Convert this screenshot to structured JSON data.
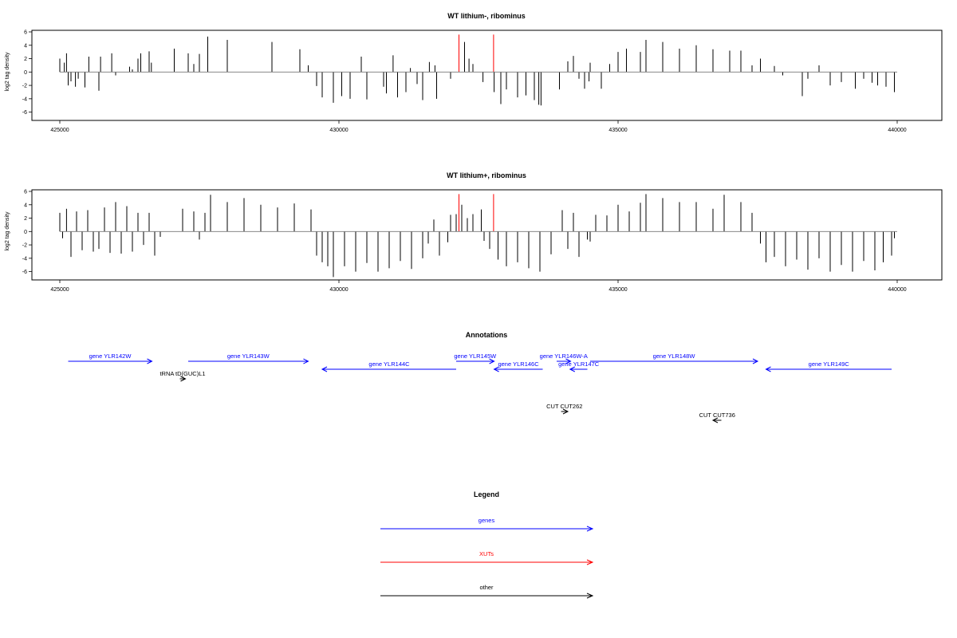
{
  "colors": {
    "gene": "#0000ff",
    "xut": "#ff0000",
    "other": "#000000"
  },
  "chart_data": [
    {
      "type": "bar",
      "title": "WT lithium-, ribominus",
      "ylabel": "log2 tag density",
      "xlim": [
        424500,
        440800
      ],
      "ylim": [
        -7,
        6
      ],
      "x_ticks": [
        425000,
        430000,
        435000,
        440000
      ],
      "x_tick_labels": [
        "425000",
        "430000",
        "435000",
        "440000"
      ],
      "y_ticks": [
        6,
        4,
        2,
        0,
        -2,
        -4,
        -6
      ],
      "y_tick_labels": [
        "6",
        "4",
        "2",
        "0",
        "-2",
        "-4",
        "-6"
      ],
      "zero_line_range": [
        425000,
        440000
      ],
      "series": [
        {
          "color_key": "other",
          "values": [
            [
              425000,
              2.0
            ],
            [
              425080,
              1.4
            ],
            [
              425120,
              2.8
            ],
            [
              425150,
              -2.0
            ],
            [
              425200,
              -1.4
            ],
            [
              425280,
              -2.2
            ],
            [
              425330,
              -1.0
            ],
            [
              425450,
              -2.3
            ],
            [
              425520,
              2.3
            ],
            [
              425700,
              -2.8
            ],
            [
              425730,
              2.3
            ],
            [
              425930,
              2.8
            ],
            [
              426000,
              -0.5
            ],
            [
              426250,
              0.8
            ],
            [
              426300,
              0.4
            ],
            [
              426400,
              2.0
            ],
            [
              426450,
              2.8
            ],
            [
              426600,
              3.1
            ],
            [
              426640,
              1.4
            ],
            [
              427050,
              3.5
            ],
            [
              427300,
              2.8
            ],
            [
              427400,
              1.2
            ],
            [
              427500,
              2.7
            ],
            [
              427650,
              5.3
            ],
            [
              428000,
              4.8
            ],
            [
              428800,
              4.5
            ],
            [
              429300,
              3.4
            ],
            [
              429450,
              1.0
            ],
            [
              429600,
              -2.1
            ],
            [
              429700,
              -3.8
            ],
            [
              429900,
              -4.6
            ],
            [
              430050,
              -3.6
            ],
            [
              430200,
              -4.0
            ],
            [
              430400,
              2.3
            ],
            [
              430500,
              -4.1
            ],
            [
              430800,
              -2.2
            ],
            [
              430850,
              -3.2
            ],
            [
              430970,
              2.5
            ],
            [
              431050,
              -3.8
            ],
            [
              431200,
              -3.0
            ],
            [
              431280,
              0.6
            ],
            [
              431400,
              -1.8
            ],
            [
              431500,
              -4.2
            ],
            [
              431620,
              1.5
            ],
            [
              431720,
              1.0
            ],
            [
              431750,
              -4.0
            ],
            [
              432000,
              -1.0
            ],
            [
              432250,
              4.5
            ],
            [
              432330,
              2.0
            ],
            [
              432400,
              1.2
            ],
            [
              432580,
              -1.5
            ],
            [
              432780,
              -3.0
            ],
            [
              432900,
              -4.8
            ],
            [
              433000,
              -2.6
            ],
            [
              433200,
              -3.8
            ],
            [
              433350,
              -3.5
            ],
            [
              433500,
              -4.2
            ],
            [
              433580,
              -4.9
            ],
            [
              433620,
              -5.0
            ],
            [
              433950,
              -2.6
            ],
            [
              434100,
              1.6
            ],
            [
              434200,
              2.4
            ],
            [
              434300,
              -1.0
            ],
            [
              434400,
              -2.5
            ],
            [
              434480,
              -1.4
            ],
            [
              434500,
              1.4
            ],
            [
              434700,
              -2.5
            ],
            [
              434850,
              1.2
            ],
            [
              435000,
              3.0
            ],
            [
              435150,
              3.5
            ],
            [
              435400,
              3.0
            ],
            [
              435500,
              4.8
            ],
            [
              435800,
              4.5
            ],
            [
              436100,
              3.5
            ],
            [
              436400,
              4.0
            ],
            [
              436700,
              3.4
            ],
            [
              437000,
              3.2
            ],
            [
              437200,
              3.2
            ],
            [
              437400,
              1.0
            ],
            [
              437550,
              2.0
            ],
            [
              437800,
              0.9
            ],
            [
              437950,
              -0.5
            ],
            [
              438300,
              -3.6
            ],
            [
              438400,
              -1.0
            ],
            [
              438600,
              1.0
            ],
            [
              438800,
              -2.0
            ],
            [
              439000,
              -1.5
            ],
            [
              439250,
              -2.5
            ],
            [
              439400,
              -1.0
            ],
            [
              439550,
              -1.6
            ],
            [
              439650,
              -2.0
            ],
            [
              439800,
              -2.2
            ],
            [
              439950,
              -3.0
            ]
          ]
        },
        {
          "color_key": "xut",
          "values": [
            [
              432150,
              5.6
            ],
            [
              432770,
              5.6
            ]
          ]
        }
      ]
    },
    {
      "type": "bar",
      "title": "WT lithium+, ribominus",
      "ylabel": "log2 tag density",
      "xlim": [
        424500,
        440800
      ],
      "ylim": [
        -7,
        6
      ],
      "x_ticks": [
        425000,
        430000,
        435000,
        440000
      ],
      "x_tick_labels": [
        "425000",
        "430000",
        "435000",
        "440000"
      ],
      "y_ticks": [
        6,
        4,
        2,
        0,
        -2,
        -4,
        -6
      ],
      "y_tick_labels": [
        "6",
        "4",
        "2",
        "0",
        "-2",
        "-4",
        "-6"
      ],
      "zero_line_range": [
        425000,
        440000
      ],
      "series": [
        {
          "color_key": "other",
          "values": [
            [
              425000,
              2.8
            ],
            [
              425050,
              -1.0
            ],
            [
              425120,
              3.4
            ],
            [
              425200,
              -3.8
            ],
            [
              425300,
              3.0
            ],
            [
              425400,
              -2.8
            ],
            [
              425500,
              3.2
            ],
            [
              425600,
              -3.0
            ],
            [
              425700,
              -2.6
            ],
            [
              425800,
              3.6
            ],
            [
              425900,
              -3.2
            ],
            [
              426000,
              4.4
            ],
            [
              426100,
              -3.3
            ],
            [
              426200,
              3.8
            ],
            [
              426300,
              -3.0
            ],
            [
              426400,
              2.8
            ],
            [
              426500,
              -2.0
            ],
            [
              426600,
              2.8
            ],
            [
              426700,
              -3.6
            ],
            [
              426800,
              -0.8
            ],
            [
              427200,
              3.4
            ],
            [
              427400,
              3.0
            ],
            [
              427500,
              -1.2
            ],
            [
              427600,
              2.8
            ],
            [
              427700,
              5.5
            ],
            [
              428000,
              4.4
            ],
            [
              428300,
              5.0
            ],
            [
              428600,
              4.0
            ],
            [
              428900,
              3.6
            ],
            [
              429200,
              4.2
            ],
            [
              429500,
              3.3
            ],
            [
              429600,
              -3.6
            ],
            [
              429700,
              -4.6
            ],
            [
              429800,
              -5.2
            ],
            [
              429900,
              -6.8
            ],
            [
              430100,
              -5.2
            ],
            [
              430300,
              -6.0
            ],
            [
              430500,
              -4.7
            ],
            [
              430700,
              -6.0
            ],
            [
              430900,
              -5.5
            ],
            [
              431100,
              -4.4
            ],
            [
              431300,
              -5.6
            ],
            [
              431500,
              -4.0
            ],
            [
              431600,
              -1.8
            ],
            [
              431700,
              1.8
            ],
            [
              431800,
              -3.6
            ],
            [
              431950,
              -1.6
            ],
            [
              432000,
              2.5
            ],
            [
              432100,
              2.6
            ],
            [
              432200,
              4.0
            ],
            [
              432300,
              2.0
            ],
            [
              432400,
              2.6
            ],
            [
              432550,
              3.3
            ],
            [
              432600,
              -1.4
            ],
            [
              432700,
              -2.6
            ],
            [
              432850,
              -4.2
            ],
            [
              433000,
              -5.2
            ],
            [
              433200,
              -4.6
            ],
            [
              433400,
              -5.5
            ],
            [
              433600,
              -6.0
            ],
            [
              433800,
              -3.4
            ],
            [
              434000,
              3.2
            ],
            [
              434100,
              -2.6
            ],
            [
              434200,
              2.8
            ],
            [
              434300,
              -3.8
            ],
            [
              434450,
              -1.2
            ],
            [
              434500,
              -1.5
            ],
            [
              434600,
              2.5
            ],
            [
              434800,
              2.4
            ],
            [
              435000,
              4.0
            ],
            [
              435200,
              3.0
            ],
            [
              435400,
              4.3
            ],
            [
              435500,
              5.6
            ],
            [
              435800,
              5.0
            ],
            [
              436100,
              4.4
            ],
            [
              436400,
              4.4
            ],
            [
              436700,
              3.4
            ],
            [
              436900,
              5.5
            ],
            [
              437200,
              4.4
            ],
            [
              437400,
              2.8
            ],
            [
              437550,
              -1.8
            ],
            [
              437650,
              -4.6
            ],
            [
              437800,
              -3.8
            ],
            [
              438000,
              -5.2
            ],
            [
              438200,
              -4.2
            ],
            [
              438400,
              -5.7
            ],
            [
              438600,
              -4.0
            ],
            [
              438800,
              -6.0
            ],
            [
              439000,
              -5.0
            ],
            [
              439200,
              -6.0
            ],
            [
              439400,
              -4.4
            ],
            [
              439600,
              -5.8
            ],
            [
              439750,
              -4.6
            ],
            [
              439900,
              -3.6
            ],
            [
              439950,
              -1.0
            ]
          ]
        },
        {
          "color_key": "xut",
          "values": [
            [
              432150,
              5.6
            ],
            [
              432770,
              5.6
            ]
          ]
        }
      ]
    }
  ],
  "annotations": {
    "title": "Annotations",
    "x_range": [
      424500,
      440800
    ],
    "features": [
      {
        "label": "gene YLR142W",
        "start": 425150,
        "end": 426650,
        "strand": "+",
        "row": 0,
        "type": "gene"
      },
      {
        "label": "gene YLR143W",
        "start": 427300,
        "end": 429450,
        "strand": "+",
        "row": 0,
        "type": "gene"
      },
      {
        "label": "gene YLR144C",
        "start": 429700,
        "end": 432100,
        "strand": "-",
        "row": 1,
        "type": "gene"
      },
      {
        "label": "gene YLR145W",
        "start": 432100,
        "end": 432780,
        "strand": "+",
        "row": 0,
        "type": "gene"
      },
      {
        "label": "gene YLR146C",
        "start": 432780,
        "end": 433650,
        "strand": "-",
        "row": 1,
        "type": "gene"
      },
      {
        "label": "gene YLR146W-A",
        "start": 433900,
        "end": 434150,
        "strand": "+",
        "row": 0,
        "type": "gene"
      },
      {
        "label": "gene YLR147C",
        "start": 434140,
        "end": 434450,
        "strand": "-",
        "row": 1,
        "type": "gene"
      },
      {
        "label": "gene YLR148W",
        "start": 434500,
        "end": 437500,
        "strand": "+",
        "row": 0,
        "type": "gene"
      },
      {
        "label": "gene YLR149C",
        "start": 437650,
        "end": 439900,
        "strand": "-",
        "row": 1,
        "type": "gene"
      },
      {
        "label": "tRNA tD(GUC)L1",
        "start": 427150,
        "end": 427250,
        "strand": "+",
        "row": 2,
        "type": "other"
      },
      {
        "label": "CUT CUT262",
        "start": 433980,
        "end": 434100,
        "strand": "+",
        "row": 3,
        "type": "other"
      },
      {
        "label": "CUT CUT736",
        "start": 436700,
        "end": 436850,
        "strand": "-",
        "row": 4,
        "type": "other"
      }
    ]
  },
  "legend": {
    "title": "Legend",
    "items": [
      {
        "label": "genes",
        "color_key": "gene"
      },
      {
        "label": "XUTs",
        "color_key": "xut"
      },
      {
        "label": "other",
        "color_key": "other"
      }
    ]
  }
}
